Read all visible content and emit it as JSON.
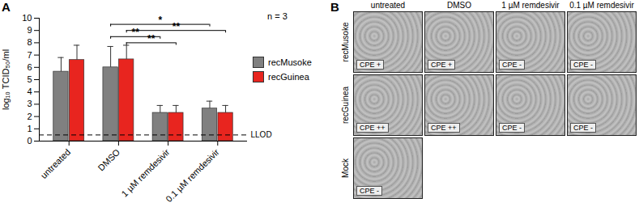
{
  "panel_labels": [
    "A",
    "B"
  ],
  "chart_data": {
    "type": "bar",
    "y_label": "log₁₀ TCID₅₀/ml",
    "categories": [
      "untreated",
      "DMSO",
      "1 µM remdesivir",
      "0.1 µM remdesivir"
    ],
    "series": [
      {
        "name": "recMusoke",
        "color": "#808080",
        "values": [
          5.65,
          6.0,
          2.3,
          2.65
        ],
        "errors": [
          1.15,
          1.7,
          0.6,
          0.6
        ]
      },
      {
        "name": "recGuinea",
        "color": "#e8251f",
        "values": [
          6.6,
          6.65,
          2.3,
          2.3
        ],
        "errors": [
          1.2,
          1.15,
          0.6,
          0.6
        ]
      }
    ],
    "ylim": [
      0,
      10
    ],
    "yticks": [
      0,
      1,
      2,
      3,
      4,
      5,
      6,
      7,
      8,
      9,
      10
    ],
    "legend": "right",
    "reference_line": {
      "value": 0.5,
      "label": "LLOD"
    },
    "annotation": "n = 3",
    "significance": [
      {
        "from": "DMSO",
        "to": "0.1 µM remdesivir",
        "series": "recMusoke",
        "label": "*"
      },
      {
        "from": "DMSO",
        "to": "0.1 µM remdesivir",
        "series": "recGuinea",
        "label": "**"
      },
      {
        "from": "DMSO",
        "to": "1 µM remdesivir",
        "series": "recMusoke",
        "label": "**"
      },
      {
        "from": "DMSO",
        "to": "1 µM remdesivir",
        "series": "recGuinea",
        "label": "**"
      }
    ]
  },
  "image_grid": {
    "columns": [
      "untreated",
      "DMSO",
      "1 µM remdesivir",
      "0.1 µM remdesivir"
    ],
    "rows": [
      {
        "label": "recMusoke",
        "cells": [
          "CPE +",
          "CPE +",
          "CPE -",
          "CPE -"
        ]
      },
      {
        "label": "recGuinea",
        "cells": [
          "CPE ++",
          "CPE ++",
          "CPE -",
          "CPE -"
        ]
      },
      {
        "label": "Mock",
        "cells": [
          "CPE -"
        ]
      }
    ]
  }
}
